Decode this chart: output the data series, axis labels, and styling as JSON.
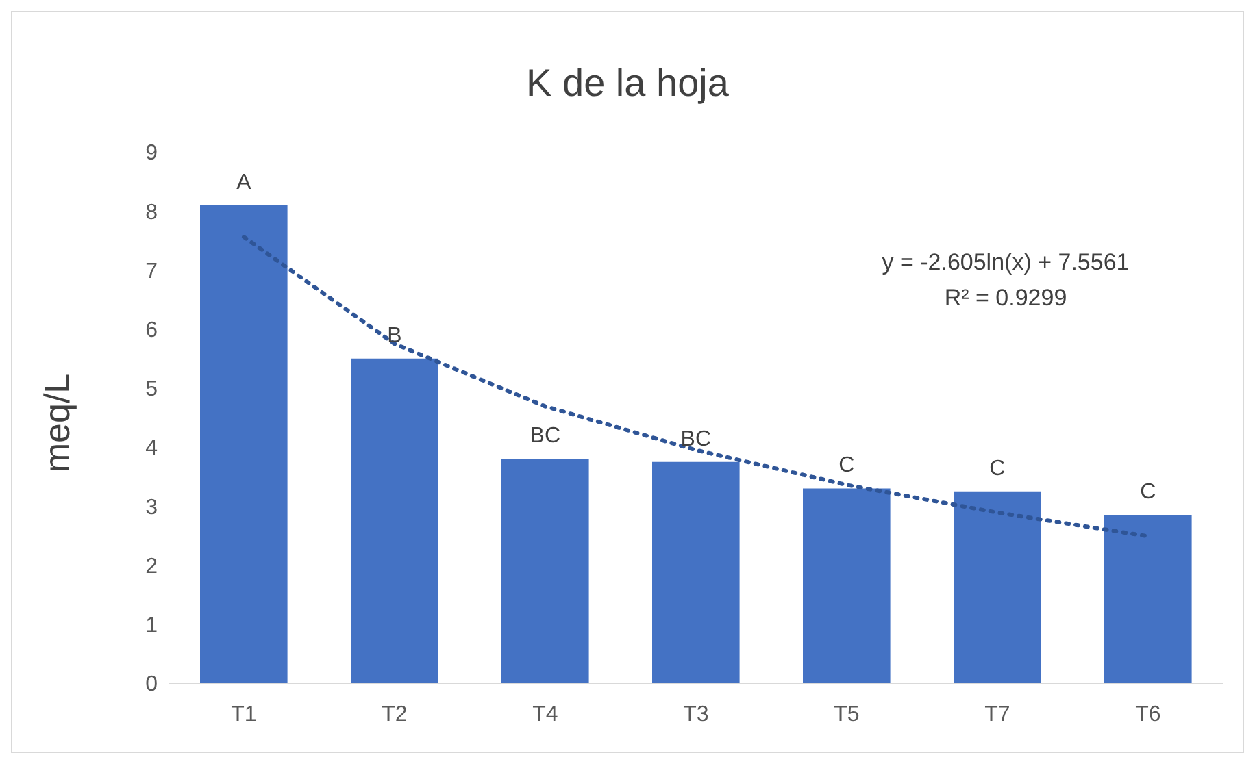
{
  "chart_data": {
    "type": "bar",
    "title": "K de la hoja",
    "ylabel": "meq/L",
    "categories": [
      "T1",
      "T2",
      "T4",
      "T3",
      "T5",
      "T7",
      "T6"
    ],
    "series": [
      {
        "color": "#4472c4",
        "values": [
          8.1,
          5.5,
          3.8,
          3.75,
          3.3,
          3.25,
          2.85
        ],
        "value_labels": [
          "A",
          "B",
          "BC",
          "BC",
          "C",
          "C",
          "C"
        ]
      },
      {
        "type": "line",
        "color": "#2f5597",
        "line_style": "dotted",
        "values": [
          7.56,
          5.75,
          4.69,
          3.95,
          3.36,
          2.89,
          2.49
        ]
      }
    ],
    "ylim": [
      0,
      9
    ],
    "yticks": [
      0,
      1,
      2,
      3,
      4,
      5,
      6,
      7,
      8,
      9
    ],
    "grid": false,
    "legend": false,
    "marker": "none",
    "annotations": [
      "y = -2.605ln(x) + 7.5561\nR² = 0.9299"
    ]
  }
}
